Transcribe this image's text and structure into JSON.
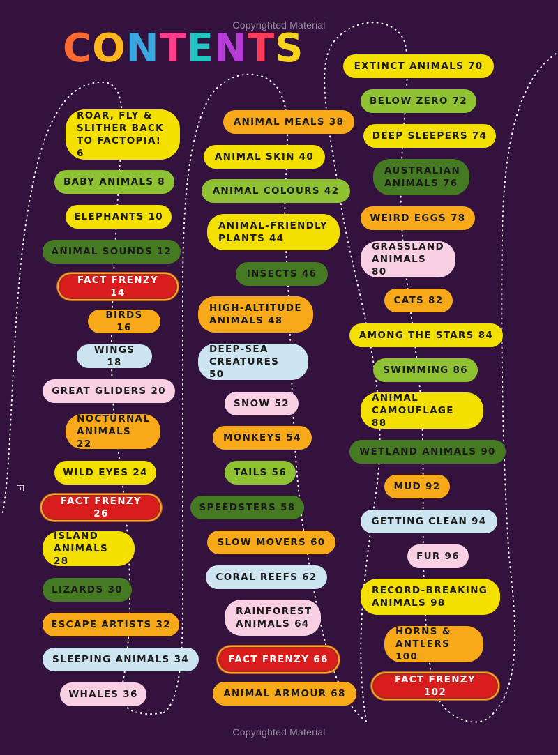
{
  "watermark": "Copyrighted Material",
  "title": {
    "text": "CONTENTS",
    "letter_colors": [
      "#ff6a2f",
      "#ffb61c",
      "#3aa8e0",
      "#ff3d8b",
      "#23c4c1",
      "#b63bd7",
      "#ff3b5c",
      "#f6d41d"
    ]
  },
  "colors": {
    "background": "#33123e",
    "yellow": "#f3e000",
    "green": "#8fc232",
    "dark_green": "#467a22",
    "orange": "#f8a91a",
    "light_blue": "#cde4f1",
    "pink": "#f9cfe4",
    "red": "#d91d1d"
  },
  "entries": [
    {
      "label": "ROAR, FLY &\nSLITHER BACK\nTO FACTOPIA! 6",
      "color": "yellow"
    },
    {
      "label": "BABY ANIMALS 8",
      "color": "green"
    },
    {
      "label": "ELEPHANTS 10",
      "color": "yellow"
    },
    {
      "label": "ANIMAL SOUNDS 12",
      "color": "dark_green"
    },
    {
      "label": "FACT FRENZY 14",
      "color": "red"
    },
    {
      "label": "BIRDS 16",
      "color": "orange"
    },
    {
      "label": "WINGS 18",
      "color": "light_blue"
    },
    {
      "label": "GREAT GLIDERS 20",
      "color": "pink"
    },
    {
      "label": "NOCTURNAL\nANIMALS 22",
      "color": "orange"
    },
    {
      "label": "WILD EYES 24",
      "color": "yellow"
    },
    {
      "label": "FACT FRENZY 26",
      "color": "red"
    },
    {
      "label": "ISLAND\nANIMALS 28",
      "color": "yellow"
    },
    {
      "label": "LIZARDS 30",
      "color": "dark_green"
    },
    {
      "label": "ESCAPE ARTISTS 32",
      "color": "orange"
    },
    {
      "label": "SLEEPING ANIMALS 34",
      "color": "light_blue"
    },
    {
      "label": "WHALES 36",
      "color": "pink"
    },
    {
      "label": "ANIMAL MEALS 38",
      "color": "orange"
    },
    {
      "label": "ANIMAL SKIN 40",
      "color": "yellow"
    },
    {
      "label": "ANIMAL COLOURS 42",
      "color": "green"
    },
    {
      "label": "ANIMAL-FRIENDLY\nPLANTS 44",
      "color": "yellow"
    },
    {
      "label": "INSECTS 46",
      "color": "dark_green"
    },
    {
      "label": "HIGH-ALTITUDE\nANIMALS 48",
      "color": "orange"
    },
    {
      "label": "DEEP-SEA\nCREATURES 50",
      "color": "light_blue"
    },
    {
      "label": "SNOW 52",
      "color": "pink"
    },
    {
      "label": "MONKEYS 54",
      "color": "orange"
    },
    {
      "label": "TAILS 56",
      "color": "green"
    },
    {
      "label": "SPEEDSTERS 58",
      "color": "dark_green"
    },
    {
      "label": "SLOW MOVERS 60",
      "color": "orange"
    },
    {
      "label": "CORAL REEFS 62",
      "color": "light_blue"
    },
    {
      "label": "RAINFOREST\nANIMALS 64",
      "color": "pink"
    },
    {
      "label": "FACT FRENZY 66",
      "color": "red"
    },
    {
      "label": "ANIMAL ARMOUR 68",
      "color": "orange"
    },
    {
      "label": "EXTINCT ANIMALS 70",
      "color": "yellow"
    },
    {
      "label": "BELOW ZERO 72",
      "color": "green"
    },
    {
      "label": "DEEP SLEEPERS 74",
      "color": "yellow"
    },
    {
      "label": "AUSTRALIAN\nANIMALS 76",
      "color": "dark_green"
    },
    {
      "label": "WEIRD EGGS 78",
      "color": "orange"
    },
    {
      "label": "GRASSLAND\nANIMALS 80",
      "color": "pink"
    },
    {
      "label": "CATS 82",
      "color": "orange"
    },
    {
      "label": "AMONG THE STARS 84",
      "color": "yellow"
    },
    {
      "label": "SWIMMING 86",
      "color": "green"
    },
    {
      "label": "ANIMAL\nCAMOUFLAGE 88",
      "color": "yellow"
    },
    {
      "label": "WETLAND ANIMALS 90",
      "color": "dark_green"
    },
    {
      "label": "MUD 92",
      "color": "orange"
    },
    {
      "label": "GETTING CLEAN 94",
      "color": "light_blue"
    },
    {
      "label": "FUR 96",
      "color": "pink"
    },
    {
      "label": "RECORD-BREAKING\nANIMALS 98",
      "color": "yellow"
    },
    {
      "label": "HORNS &\nANTLERS 100",
      "color": "orange"
    },
    {
      "label": "FACT FRENZY 102",
      "color": "red"
    }
  ]
}
